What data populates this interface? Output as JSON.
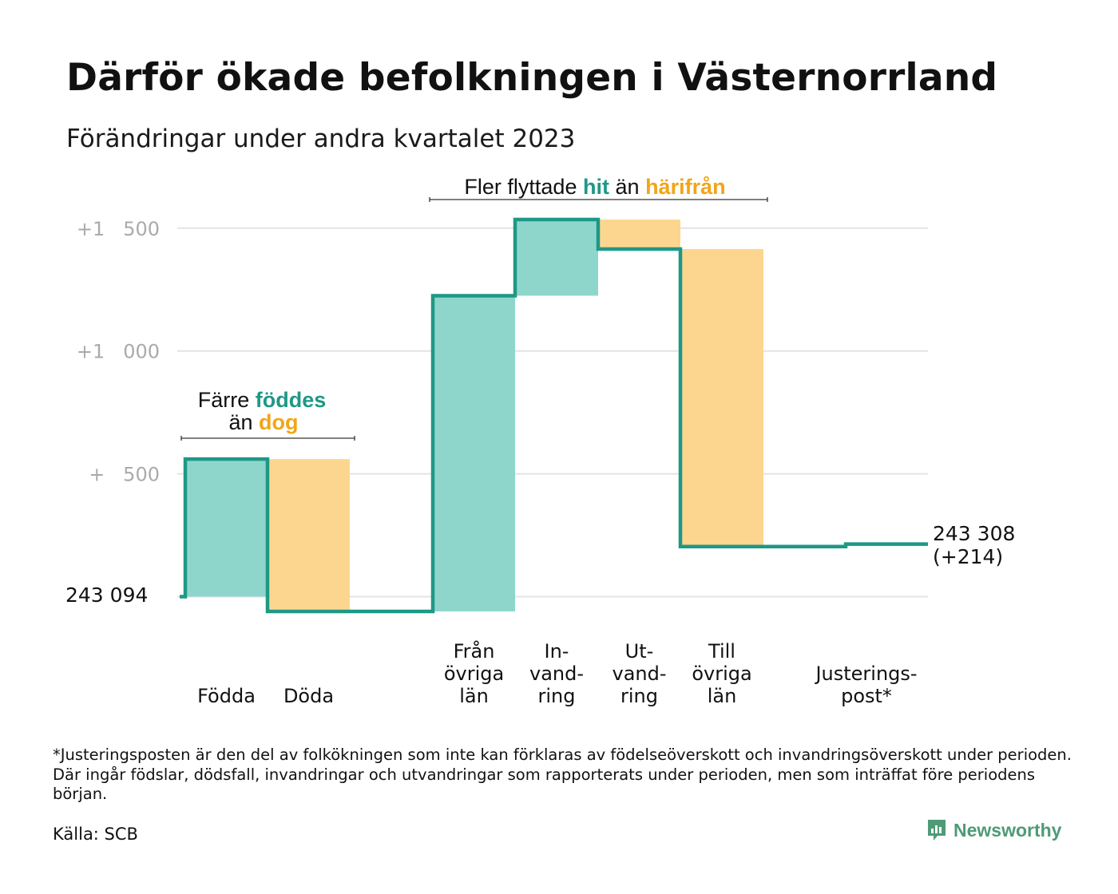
{
  "title": "Därför ökade befolkningen i Västernorrland",
  "subtitle": "Förändringar under andra kvartalet 2023",
  "footnote": "*Justeringsposten är den del av folkökningen som inte kan förklaras av födelseöverskott och invandringsöverskott under perioden. Där ingår födslar, dödsfall, invandringar och utvandringar som rapporterats under perioden, men som inträffat före periodens början.",
  "source": "Källa: SCB",
  "brand": "Newsworthy",
  "colors": {
    "teal_line": "#1f9886",
    "teal_fill": "#8ed6cb",
    "orange_fill": "#fcd68f",
    "teal_text": "#1f9886",
    "orange_text": "#f2a516",
    "grid": "#e4e4e4",
    "axis_text": "#aaaaaa"
  },
  "annotations": {
    "births": {
      "pre": "Färre",
      "hl1": "föddes",
      "pre2": "än",
      "hl2": "dog"
    },
    "migration": {
      "pre": "Fler flyttade",
      "hl1": "hit",
      "mid": "än",
      "hl2": "härifrån"
    }
  },
  "chart_data": {
    "type": "waterfall",
    "title": "Därför ökade befolkningen i Västernorrland",
    "subtitle": "Förändringar under andra kvartalet 2023",
    "start_label": "243 094",
    "start_value": 243094,
    "end_label": "243 308",
    "end_change_label": "(+214)",
    "end_value": 243308,
    "yticks": [
      {
        "value": 500,
        "label": "+ 500"
      },
      {
        "value": 1000,
        "label": "+1 000"
      },
      {
        "value": 1500,
        "label": "+1 500"
      }
    ],
    "ylim": [
      -100,
      1650
    ],
    "grid": true,
    "categories": [
      {
        "label": [
          "Födda"
        ],
        "change": 560,
        "kind": "gain"
      },
      {
        "label": [
          "Döda"
        ],
        "change": -620,
        "kind": "loss"
      },
      {
        "label": [
          "Från",
          "övriga",
          "län"
        ],
        "change": 1285,
        "kind": "gain"
      },
      {
        "label": [
          "In-",
          "vand-",
          "ring"
        ],
        "change": 310,
        "kind": "gain"
      },
      {
        "label": [
          "Ut-",
          "vand-",
          "ring"
        ],
        "change": -120,
        "kind": "loss"
      },
      {
        "label": [
          "Till",
          "övriga",
          "län"
        ],
        "change": -1211,
        "kind": "loss"
      },
      {
        "label": [
          "Justerings-",
          "post*"
        ],
        "change": 10,
        "kind": "adjustment"
      }
    ]
  }
}
